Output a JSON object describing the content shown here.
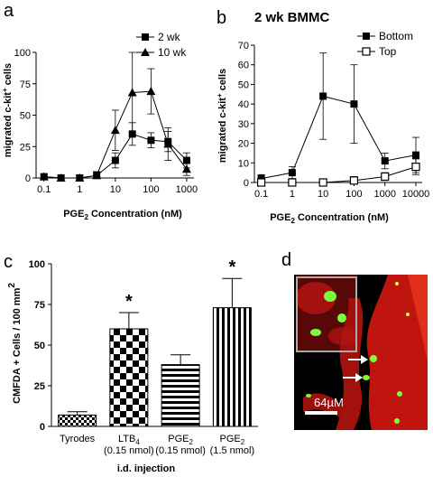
{
  "panel_a": {
    "letter": "a",
    "ylabel": "migrated c-kit",
    "ylabel_sup": "+",
    "ylabel_tail": " cells",
    "xlabel": "PGE",
    "xlabel_sub": "2",
    "xlabel_tail": " Concentration (nM)"
  },
  "panel_b": {
    "letter": "b",
    "title": "2 wk BMMC",
    "ylabel": "migrated c-kit",
    "ylabel_sup": "+",
    "ylabel_tail": " cells",
    "xlabel": "PGE",
    "xlabel_sub": "2",
    "xlabel_tail": " Concentration (nM)"
  },
  "panel_c": {
    "letter": "c",
    "ylabel": "CMFDA +  Cells / 100 mm",
    "ylabel_sup": "2",
    "xlabel": "i.d. injection",
    "star_symbol": "*",
    "bar_labels": [
      {
        "l1": "Tyrodes",
        "l1_sub": "",
        "l2": ""
      },
      {
        "l1": "LTB",
        "l1_sub": "4",
        "l2": "(0.15 nmol)"
      },
      {
        "l1": "PGE",
        "l1_sub": "2",
        "l2": "(0.15 nmol)"
      },
      {
        "l1": "PGE",
        "l1_sub": "2",
        "l2": "(1.5 nmol)"
      }
    ]
  },
  "panel_d": {
    "letter": "d",
    "scale_label": "64µM"
  },
  "chart_data": [
    {
      "panel": "a",
      "type": "line",
      "title": "",
      "xlabel": "PGE2 Concentration (nM)",
      "ylabel": "migrated c-kit+ cells",
      "x": [
        0.1,
        0.3,
        1,
        3,
        10,
        30,
        100,
        300,
        1000
      ],
      "x_tick_labels": [
        "0.1",
        "1",
        "10",
        "100",
        "1000"
      ],
      "x_ticks": [
        0.1,
        1,
        10,
        100,
        1000
      ],
      "xscale": "log",
      "xlim": [
        0.06,
        1600
      ],
      "ylim": [
        0,
        100
      ],
      "y_ticks": [
        0,
        25,
        50,
        75,
        100
      ],
      "legend_position": "top-right",
      "series": [
        {
          "name": "2 wk",
          "marker": "square",
          "values": [
            1,
            0,
            0,
            2,
            14,
            35,
            30,
            29,
            14
          ],
          "errors": [
            2,
            2,
            2,
            3,
            6,
            9,
            6,
            8,
            6
          ]
        },
        {
          "name": "10 wk",
          "marker": "triangle",
          "values": [
            1,
            0,
            0,
            2,
            38,
            68,
            69,
            27,
            7
          ],
          "errors": [
            2,
            2,
            2,
            3,
            16,
            32,
            18,
            13,
            5
          ]
        }
      ]
    },
    {
      "panel": "b",
      "type": "line",
      "title": "2 wk BMMC",
      "xlabel": "PGE2 Concentration (nM)",
      "ylabel": "migrated c-kit+ cells",
      "x": [
        0.1,
        1,
        10,
        100,
        1000,
        10000
      ],
      "x_tick_labels": [
        "0.1",
        "1",
        "10",
        "100",
        "1000",
        "10000"
      ],
      "x_ticks": [
        0.1,
        1,
        10,
        100,
        1000,
        10000
      ],
      "xscale": "log",
      "xlim": [
        0.06,
        16000
      ],
      "ylim": [
        0,
        70
      ],
      "y_ticks": [
        0,
        10,
        20,
        30,
        40,
        50,
        60,
        70
      ],
      "legend_position": "top-right",
      "series": [
        {
          "name": "Bottom",
          "marker": "square-filled",
          "values": [
            2,
            5,
            44,
            40,
            11,
            14
          ],
          "errors": [
            2,
            3,
            22,
            20,
            4,
            9
          ]
        },
        {
          "name": "Top",
          "marker": "square-open",
          "values": [
            0,
            0,
            0,
            1,
            3,
            8
          ],
          "errors": [
            1,
            1,
            1,
            2,
            2,
            4
          ]
        }
      ]
    },
    {
      "panel": "c",
      "type": "bar",
      "title": "",
      "xlabel": "i.d. injection",
      "ylabel": "CMFDA +  Cells / 100 mm2",
      "categories": [
        "Tyrodes",
        "LTB4 (0.15 nmol)",
        "PGE2 (0.15 nmol)",
        "PGE2 (1.5 nmol)"
      ],
      "values": [
        7,
        60,
        38,
        73
      ],
      "errors": [
        2,
        10,
        6,
        18
      ],
      "significant": [
        false,
        true,
        false,
        true
      ],
      "patterns": [
        "checker-small",
        "checker-large",
        "horizontal-stripes",
        "vertical-stripes"
      ],
      "ylim": [
        0,
        100
      ],
      "y_ticks": [
        0,
        25,
        50,
        75,
        100
      ]
    }
  ]
}
